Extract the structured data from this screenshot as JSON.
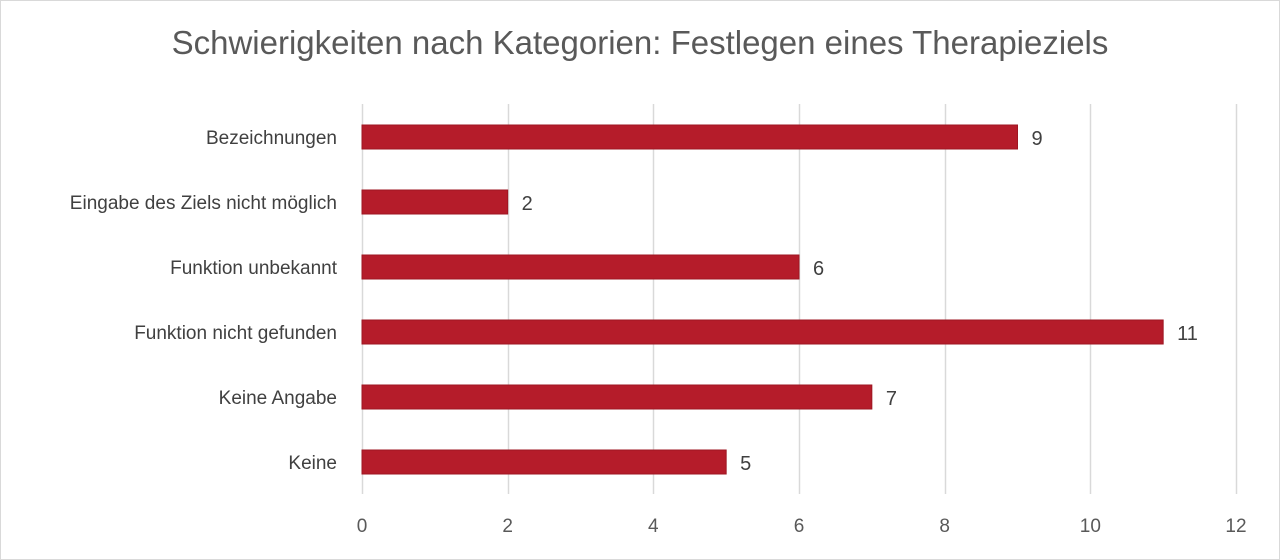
{
  "chart_data": {
    "type": "bar",
    "orientation": "horizontal",
    "title": "Schwierigkeiten nach Kategorien: Festlegen eines Therapieziels",
    "categories": [
      "Bezeichnungen",
      "Eingabe des Ziels nicht möglich",
      "Funktion unbekannt",
      "Funktion nicht gefunden",
      "Keine Angabe",
      "Keine"
    ],
    "values": [
      9,
      2,
      6,
      11,
      7,
      5
    ],
    "x_ticks": [
      "0",
      "2",
      "4",
      "6",
      "8",
      "10",
      "12"
    ],
    "xlim": [
      0,
      12
    ],
    "grid": true,
    "legend": "none",
    "colors": {
      "bar": "#b51c2a",
      "bar_edge": "#9e1622",
      "grid": "#d9d9d9"
    }
  }
}
